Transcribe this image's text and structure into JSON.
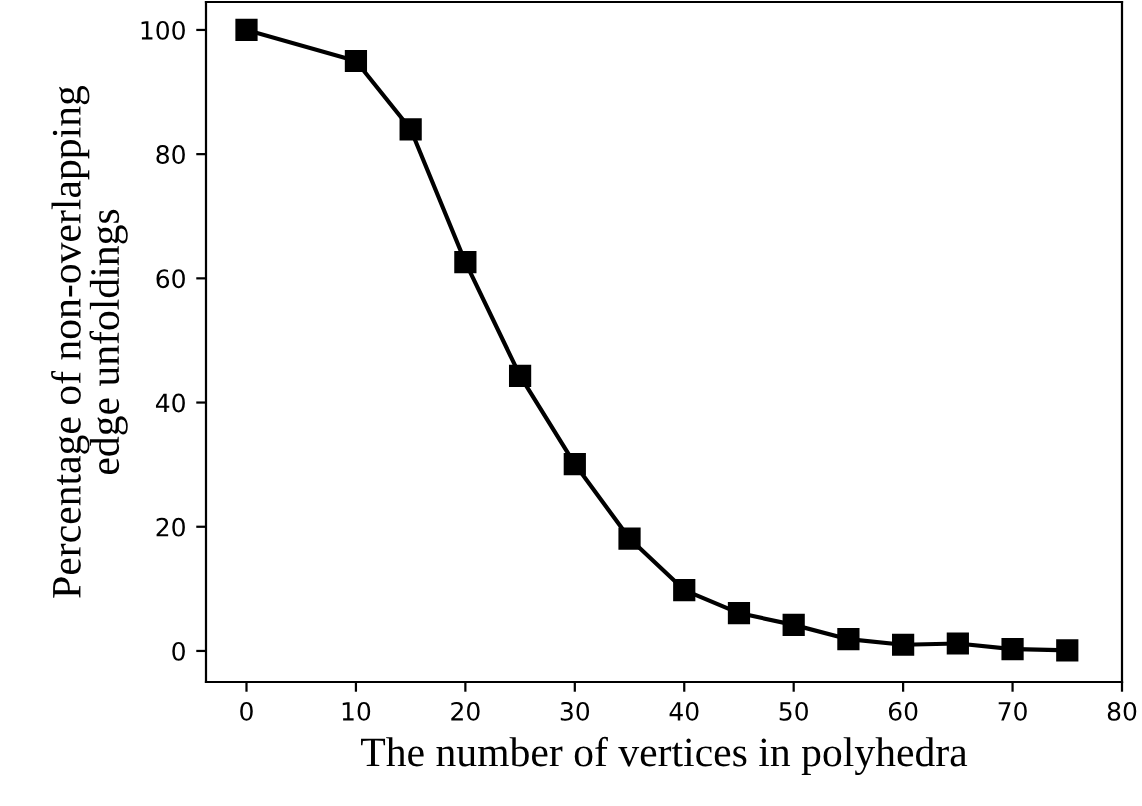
{
  "chart_data": {
    "type": "line",
    "xlabel": "The number of vertices in polyhedra",
    "ylabel": "Percentage of non-overlapping\nedge unfoldings",
    "x": [
      0,
      10,
      15,
      20,
      25,
      30,
      35,
      40,
      45,
      50,
      55,
      60,
      65,
      70,
      75
    ],
    "series": [
      {
        "color": "#000000",
        "values": [
          100,
          95,
          84,
          62.6,
          44.3,
          30.1,
          18.1,
          9.8,
          6.1,
          4.2,
          1.9,
          1.0,
          1.2,
          0.3,
          0.1
        ]
      }
    ],
    "marker": "square",
    "line_style": "solid",
    "grid": false,
    "legend": false,
    "xlim": [
      -3.7,
      80
    ],
    "ylim": [
      -5,
      104.5
    ],
    "xticks": [
      0,
      10,
      20,
      30,
      40,
      50,
      60,
      70,
      80
    ],
    "yticks": [
      0,
      20,
      40,
      60,
      80,
      100
    ]
  }
}
